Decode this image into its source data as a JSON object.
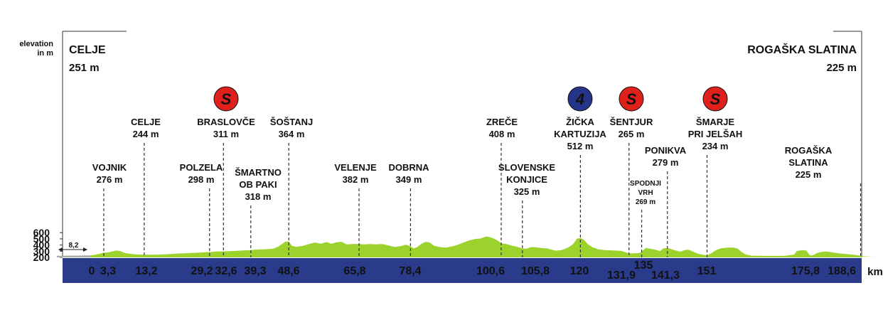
{
  "chart_data": {
    "type": "area",
    "ylabel": "elevation\nin m",
    "xunit": "km",
    "yticks": [
      200,
      300,
      400,
      500,
      600
    ],
    "ylim": [
      200,
      600
    ],
    "xlim": [
      -8.2,
      192
    ],
    "neutral": {
      "label": "8,2",
      "start": -8.2,
      "end": 0
    },
    "start": {
      "name": "CELJE",
      "elev": "251 m"
    },
    "finish": {
      "name": "ROGAŠKA SLATINA",
      "elev": "225 m"
    },
    "colors": {
      "profile": "#9bd32c",
      "axis_bar": "#2a3b8c",
      "sprint": "#e0201a",
      "climb": "#24358a"
    },
    "profile": [
      [
        -8.2,
        224
      ],
      [
        0,
        232
      ],
      [
        1,
        240
      ],
      [
        2.5,
        262
      ],
      [
        3.3,
        276
      ],
      [
        4.2,
        281
      ],
      [
        5,
        290
      ],
      [
        6.2,
        310
      ],
      [
        7.3,
        303
      ],
      [
        8.5,
        270
      ],
      [
        10,
        256
      ],
      [
        11.5,
        247
      ],
      [
        13.2,
        244
      ],
      [
        15,
        244
      ],
      [
        17,
        246
      ],
      [
        19,
        252
      ],
      [
        21,
        260
      ],
      [
        23,
        267
      ],
      [
        25,
        272
      ],
      [
        27,
        279
      ],
      [
        29.2,
        286
      ],
      [
        30.5,
        293
      ],
      [
        32.6,
        298
      ],
      [
        34,
        301
      ],
      [
        35.5,
        305
      ],
      [
        37,
        310
      ],
      [
        39.3,
        318
      ],
      [
        40.5,
        325
      ],
      [
        42,
        330
      ],
      [
        43.5,
        334
      ],
      [
        44.8,
        342
      ],
      [
        46,
        374
      ],
      [
        47,
        420
      ],
      [
        47.8,
        455
      ],
      [
        48.6,
        455
      ],
      [
        49.4,
        385
      ],
      [
        50.5,
        372
      ],
      [
        52,
        385
      ],
      [
        53.5,
        415
      ],
      [
        55,
        440
      ],
      [
        56.5,
        420
      ],
      [
        57.8,
        448
      ],
      [
        59,
        420
      ],
      [
        60.2,
        443
      ],
      [
        61.5,
        452
      ],
      [
        62.8,
        410
      ],
      [
        64,
        415
      ],
      [
        65.8,
        418
      ],
      [
        67,
        410
      ],
      [
        68.5,
        415
      ],
      [
        70,
        412
      ],
      [
        71.5,
        415
      ],
      [
        73,
        395
      ],
      [
        74.5,
        368
      ],
      [
        76,
        383
      ],
      [
        77.3,
        406
      ],
      [
        78.4,
        378
      ],
      [
        79.2,
        345
      ],
      [
        80,
        366
      ],
      [
        81,
        416
      ],
      [
        82,
        450
      ],
      [
        83,
        445
      ],
      [
        84.2,
        388
      ],
      [
        85.5,
        368
      ],
      [
        87,
        358
      ],
      [
        88.5,
        375
      ],
      [
        90,
        405
      ],
      [
        91.5,
        445
      ],
      [
        93,
        478
      ],
      [
        94.5,
        500
      ],
      [
        95.5,
        505
      ],
      [
        96.3,
        525
      ],
      [
        97,
        538
      ],
      [
        97.8,
        528
      ],
      [
        98.8,
        505
      ],
      [
        100,
        462
      ],
      [
        100.6,
        428
      ],
      [
        101.8,
        418
      ],
      [
        103,
        395
      ],
      [
        104.5,
        372
      ],
      [
        105.8,
        345
      ],
      [
        106.8,
        342
      ],
      [
        108,
        368
      ],
      [
        109.2,
        362
      ],
      [
        110.5,
        352
      ],
      [
        111.8,
        345
      ],
      [
        112.8,
        328
      ],
      [
        114,
        308
      ],
      [
        115.5,
        320
      ],
      [
        117,
        360
      ],
      [
        118.2,
        415
      ],
      [
        119.2,
        505
      ],
      [
        120,
        512
      ],
      [
        120.8,
        488
      ],
      [
        121.8,
        415
      ],
      [
        123,
        362
      ],
      [
        124.5,
        330
      ],
      [
        126,
        318
      ],
      [
        128,
        312
      ],
      [
        130,
        305
      ],
      [
        131.9,
        265
      ],
      [
        133,
        266
      ],
      [
        134.3,
        269
      ],
      [
        135,
        292
      ],
      [
        136,
        352
      ],
      [
        137,
        342
      ],
      [
        138.5,
        322
      ],
      [
        139.5,
        300
      ],
      [
        140.3,
        345
      ],
      [
        141.3,
        352
      ],
      [
        142.2,
        335
      ],
      [
        143,
        318
      ],
      [
        143.8,
        305
      ],
      [
        144.5,
        292
      ],
      [
        145.5,
        318
      ],
      [
        146.4,
        325
      ],
      [
        147.2,
        305
      ],
      [
        148.5,
        266
      ],
      [
        149.5,
        248
      ],
      [
        150.5,
        238
      ],
      [
        151,
        234
      ],
      [
        152,
        264
      ],
      [
        153.2,
        318
      ],
      [
        154.5,
        348
      ],
      [
        156,
        358
      ],
      [
        157.5,
        360
      ],
      [
        158.5,
        340
      ],
      [
        159.5,
        285
      ],
      [
        160.5,
        246
      ],
      [
        162,
        228
      ],
      [
        164,
        225
      ],
      [
        166,
        224
      ],
      [
        168,
        224
      ],
      [
        170,
        226
      ],
      [
        172.3,
        245
      ],
      [
        173,
        304
      ],
      [
        174.3,
        316
      ],
      [
        175.3,
        313
      ],
      [
        175.8,
        264
      ],
      [
        176.3,
        230
      ],
      [
        177,
        236
      ],
      [
        177.8,
        268
      ],
      [
        179,
        290
      ],
      [
        180.3,
        295
      ],
      [
        181.5,
        283
      ],
      [
        183,
        268
      ],
      [
        184.5,
        258
      ],
      [
        186,
        248
      ],
      [
        187.5,
        238
      ],
      [
        188.6,
        225
      ],
      [
        190,
        218
      ],
      [
        192,
        215
      ]
    ],
    "places": [
      {
        "name": "VOJNIK",
        "elev": "276 m",
        "km": 3.3
      },
      {
        "name": "CELJE",
        "elev": "244 m",
        "km": 13.2
      },
      {
        "name": "POLZELA",
        "elev": "298 m",
        "km": 29.2
      },
      {
        "name": "BRASLOVČE",
        "elev": "311 m",
        "km": 32.6,
        "badge": "S"
      },
      {
        "name": "ŠMARTNO OB PAKI",
        "elev": "318 m",
        "km": 39.3
      },
      {
        "name": "ŠOŠTANJ",
        "elev": "364 m",
        "km": 48.6
      },
      {
        "name": "VELENJE",
        "elev": "382 m",
        "km": 65.8
      },
      {
        "name": "DOBRNA",
        "elev": "349 m",
        "km": 78.4
      },
      {
        "name": "ZREČE",
        "elev": "408 m",
        "km": 100.6
      },
      {
        "name": "SLOVENSKE KONJICE",
        "elev": "325 m",
        "km": 105.8
      },
      {
        "name": "ŽIČKA KARTUZIJA",
        "elev": "512 m",
        "km": 120,
        "badge": "4"
      },
      {
        "name": "ŠENTJUR",
        "elev": "265 m",
        "km": 131.9,
        "badge": "S"
      },
      {
        "name": "SPODNJI VRH",
        "elev": "269 m",
        "km": 135
      },
      {
        "name": "PONIKVA",
        "elev": "279 m",
        "km": 141.3
      },
      {
        "name": "ŠMARJE PRI JELŠAH",
        "elev": "234 m",
        "km": 151,
        "badge": "S"
      },
      {
        "name": "ROGAŠKA SLATINA",
        "elev": "225 m",
        "km": 188.6
      }
    ],
    "xticks": [
      "0",
      "3,3",
      "13,2",
      "29,2",
      "32,6",
      "39,3",
      "48,6",
      "65,8",
      "78,4",
      "100,6",
      "105,8",
      "120",
      "131,9",
      "135",
      "141,3",
      "151",
      "175,8",
      "188,6"
    ]
  }
}
